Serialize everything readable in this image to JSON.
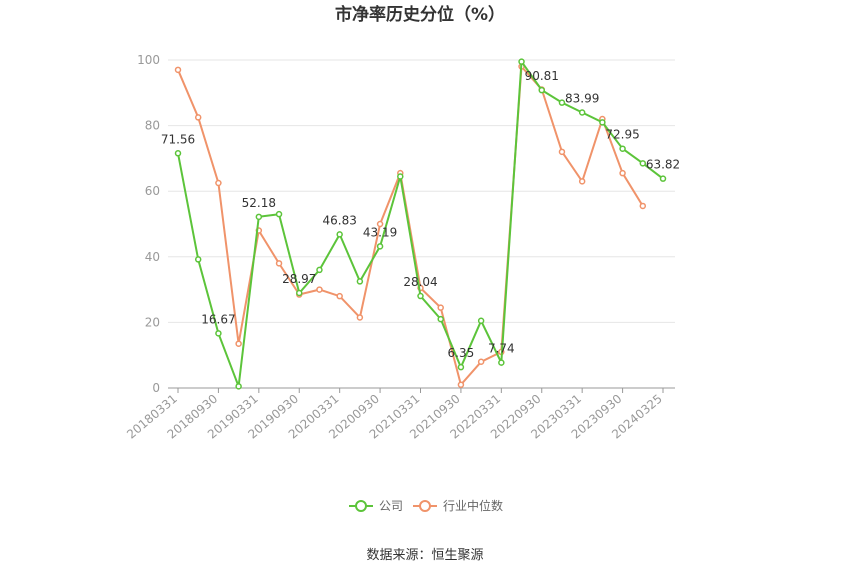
{
  "chart_data": {
    "type": "line",
    "title": "市净率历史分位（%）",
    "source": "数据来源：恒生聚源",
    "ylim": [
      0,
      100
    ],
    "y_ticks": [
      0,
      20,
      40,
      60,
      80,
      100
    ],
    "x_tick_labels": [
      "20180331",
      "20180930",
      "20190331",
      "20190930",
      "20200331",
      "20200930",
      "20210331",
      "20210930",
      "20220331",
      "20220930",
      "20230331",
      "20230930",
      "20240325"
    ],
    "categories": [
      "20180331",
      "20180630",
      "20180930",
      "20181231",
      "20190331",
      "20190630",
      "20190930",
      "20191231",
      "20200331",
      "20200630",
      "20200930",
      "20201231",
      "20210331",
      "20210630",
      "20210930",
      "20211231",
      "20220331",
      "20220630",
      "20220930",
      "20221231",
      "20230331",
      "20230630",
      "20230930",
      "20231231",
      "20240325"
    ],
    "legend_position": "bottom-center",
    "grid": true,
    "series": [
      {
        "name": "公司",
        "color": "#5cc43a",
        "values": [
          71.56,
          39.2,
          16.67,
          0.5,
          52.18,
          53.0,
          28.97,
          36.0,
          46.83,
          32.5,
          43.19,
          64.5,
          28.04,
          21.0,
          6.35,
          20.5,
          7.74,
          99.5,
          90.81,
          87.0,
          83.99,
          81.0,
          72.95,
          68.5,
          63.82
        ]
      },
      {
        "name": "行业中位数",
        "color": "#f0936a",
        "values": [
          97.0,
          82.5,
          62.5,
          13.5,
          48.0,
          38.0,
          28.5,
          30.0,
          28.0,
          21.5,
          50.0,
          65.5,
          30.5,
          24.5,
          1.0,
          8.0,
          11.0,
          98.0,
          91.0,
          72.0,
          63.0,
          82.0,
          65.5,
          55.5,
          null
        ]
      }
    ],
    "data_labels": [
      {
        "index": 0,
        "text": "71.56"
      },
      {
        "index": 2,
        "text": "16.67"
      },
      {
        "index": 4,
        "text": "52.18"
      },
      {
        "index": 6,
        "text": "28.97"
      },
      {
        "index": 8,
        "text": "46.83"
      },
      {
        "index": 10,
        "text": "43.19"
      },
      {
        "index": 12,
        "text": "28.04"
      },
      {
        "index": 14,
        "text": "6.35"
      },
      {
        "index": 16,
        "text": "7.74"
      },
      {
        "index": 18,
        "text": "90.81"
      },
      {
        "index": 20,
        "text": "83.99"
      },
      {
        "index": 22,
        "text": "72.95"
      },
      {
        "index": 24,
        "text": "63.82"
      }
    ]
  }
}
